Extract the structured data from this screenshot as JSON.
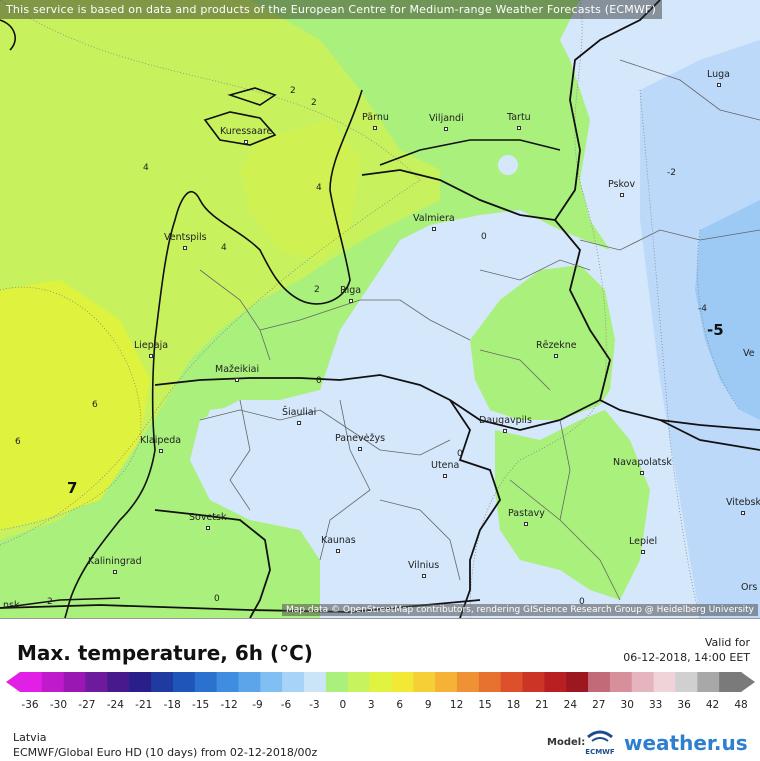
{
  "header": {
    "disclaimer": "This service is based on data and products of the European Centre for Medium-range Weather Forecasts (ECMWF)"
  },
  "map": {
    "attribution": "Map data © OpenStreetMap contributors, rendering GIScience Research Group @ Heidelberg University",
    "cities": [
      {
        "id": "kuressaare",
        "name": "Kuressaare"
      },
      {
        "id": "parnu",
        "name": "Pärnu"
      },
      {
        "id": "viljandi",
        "name": "Viljandi"
      },
      {
        "id": "tartu",
        "name": "Tartu"
      },
      {
        "id": "luga",
        "name": "Luga"
      },
      {
        "id": "pskov",
        "name": "Pskov"
      },
      {
        "id": "ventspils",
        "name": "Ventspils"
      },
      {
        "id": "valmiera",
        "name": "Valmiera"
      },
      {
        "id": "riga",
        "name": "Riga"
      },
      {
        "id": "liepaja",
        "name": "Liepaja"
      },
      {
        "id": "rezekne",
        "name": "Rēzekne"
      },
      {
        "id": "mazeikiai",
        "name": "Mažeikiai"
      },
      {
        "id": "siauliai",
        "name": "Šiauliai"
      },
      {
        "id": "panevezys",
        "name": "Panevėžys"
      },
      {
        "id": "klaipeda",
        "name": "Klaipeda"
      },
      {
        "id": "daugavpils",
        "name": "Daugavpils"
      },
      {
        "id": "utena",
        "name": "Utena"
      },
      {
        "id": "navapolatsk",
        "name": "Navapolatsk"
      },
      {
        "id": "vitebsk",
        "name": "Vitebsk"
      },
      {
        "id": "sovetsk",
        "name": "Sovetsk"
      },
      {
        "id": "pastavy",
        "name": "Pastavy"
      },
      {
        "id": "kaunas",
        "name": "Kaunas"
      },
      {
        "id": "lepiel",
        "name": "Lepiel"
      },
      {
        "id": "kaliningrad",
        "name": "Kaliningrad"
      },
      {
        "id": "vilnius",
        "name": "Vilnius"
      },
      {
        "id": "ve",
        "name": "Ve"
      },
      {
        "id": "ors",
        "name": "Ors"
      },
      {
        "id": "nsk",
        "name": "nsk"
      }
    ],
    "contour_labels": [
      "2",
      "2",
      "4",
      "4",
      "4",
      "2",
      "0",
      "0",
      "0",
      "0",
      "6",
      "6",
      "2",
      "0",
      "-2",
      "-4"
    ],
    "extreme_labels": [
      "7",
      "-5"
    ]
  },
  "legend": {
    "title": "Max. temperature, 6h (°C)",
    "valid_label": "Valid for",
    "valid_time": "06-12-2018, 14:00 EET",
    "ticks": [
      "-36",
      "-30",
      "-27",
      "-24",
      "-21",
      "-18",
      "-15",
      "-12",
      "-9",
      "-6",
      "-3",
      "0",
      "3",
      "6",
      "9",
      "12",
      "15",
      "18",
      "21",
      "24",
      "27",
      "30",
      "33",
      "36",
      "42",
      "48"
    ],
    "colors": [
      "#e21fe6",
      "#c01acd",
      "#9a17b4",
      "#6e1a9c",
      "#461a8b",
      "#2a1f8a",
      "#1f3aa0",
      "#1f55b8",
      "#2b72cf",
      "#3f8de0",
      "#5da5ea",
      "#80bff2",
      "#a6d3f7",
      "#cbe4f8",
      "#a9f07d",
      "#c7f35e",
      "#e1f341",
      "#f2e935",
      "#f5cf36",
      "#f5b236",
      "#ef9235",
      "#e7712f",
      "#dc512b",
      "#cc3426",
      "#b81f22",
      "#9d1720",
      "#c26a78",
      "#d88f9c",
      "#e6b4bd",
      "#efd3d8",
      "#d0d0d0",
      "#a8a8a8",
      "#7a7a7a"
    ],
    "country": "Latvia",
    "model": "ECMWF/Global Euro HD (10 days) from 02-12-2018/00z",
    "model_label": "Model:",
    "ecmwf_logo": "ECMWF",
    "brand_logo": "weather.us",
    "accent": "#2f7fcf"
  }
}
